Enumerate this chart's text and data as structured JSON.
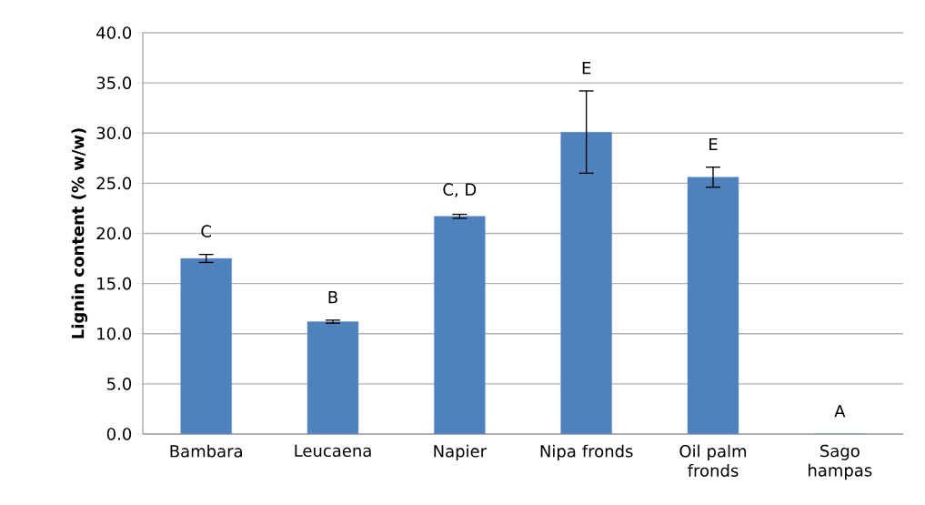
{
  "chart_data": {
    "type": "bar",
    "ylabel": "Lignin content (% w/w)",
    "categories": [
      "Bambara",
      "Leucaena",
      "Napier",
      "Nipa fronds",
      "Oil palm fronds",
      "Sago hampas"
    ],
    "values": [
      17.5,
      11.2,
      21.7,
      30.1,
      25.6,
      0.0
    ],
    "errors": [
      0.4,
      0.15,
      0.2,
      4.1,
      1.0,
      null
    ],
    "color": "#4f81bd",
    "ylim": [
      0,
      40
    ],
    "yticks": [
      {
        "value": 0,
        "label": "0.0"
      },
      {
        "value": 5,
        "label": "5.0"
      },
      {
        "value": 10,
        "label": "10.0"
      },
      {
        "value": 15,
        "label": "15.0"
      },
      {
        "value": 20,
        "label": "20.0"
      },
      {
        "value": 25,
        "label": "25.0"
      },
      {
        "value": 30,
        "label": "30.0"
      },
      {
        "value": 35,
        "label": "35.0"
      },
      {
        "value": 40,
        "label": "40.0"
      }
    ],
    "grid": "y",
    "annotations": [
      "C",
      "B",
      "C, D",
      "E",
      "E",
      "A"
    ]
  }
}
